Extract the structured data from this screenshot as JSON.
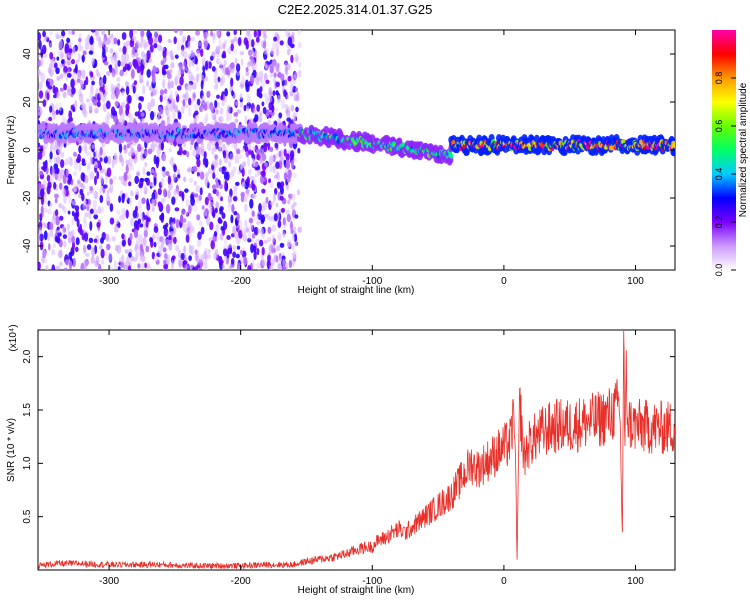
{
  "title": "C2E2.2025.314.01.37.G25",
  "chart_data": [
    {
      "type": "heatmap",
      "xlabel": "Height of straight line (km)",
      "ylabel": "Frequency (Hz)",
      "xlim": [
        -354,
        130
      ],
      "ylim": [
        -50,
        50
      ],
      "xticks": [
        -300,
        -200,
        -100,
        0,
        100
      ],
      "yticks": [
        -40,
        -20,
        0,
        20,
        40
      ],
      "colorbar": {
        "label": "Normalized spectral amplitude",
        "range": [
          0,
          1
        ],
        "ticks": [
          0.0,
          0.2,
          0.4,
          0.6,
          0.8
        ],
        "colors": [
          "#ffffff",
          "#cc99ff",
          "#7a00ff",
          "#0000ff",
          "#00ccff",
          "#00ff66",
          "#66ff00",
          "#ffff00",
          "#ff9900",
          "#ff0000",
          "#ff00aa"
        ]
      },
      "features": [
        {
          "x_range": [
            -354,
            -155
          ],
          "frequency": 7,
          "amplitude": 0.35,
          "noise": "broad scatter across all frequencies"
        },
        {
          "x_range": [
            -155,
            -40
          ],
          "frequency_start": 7,
          "frequency_end": -2,
          "amplitude": 0.5
        },
        {
          "x_range": [
            -40,
            130
          ],
          "frequency": 2,
          "amplitude": 0.9
        }
      ]
    },
    {
      "type": "line",
      "xlabel": "Height of straight line (km)",
      "ylabel": "SNR (10 * v/v)",
      "y_multiplier": "(x10⁴)",
      "xlim": [
        -354,
        130
      ],
      "ylim": [
        0,
        2.25
      ],
      "xticks": [
        -300,
        -200,
        -100,
        0,
        100
      ],
      "yticks": [
        0.5,
        1.0,
        1.5,
        2.0
      ],
      "color": "#e8302a",
      "series": [
        {
          "x": [
            -354,
            -340,
            -320,
            -300,
            -280,
            -260,
            -240,
            -220,
            -200,
            -180,
            -160,
            -150,
            -140,
            -130,
            -120,
            -110,
            -100,
            -95,
            -90,
            -85,
            -80,
            -75,
            -70,
            -65,
            -60,
            -55,
            -50,
            -45,
            -40,
            -35,
            -30,
            -25,
            -20,
            -15,
            -10,
            -5,
            0,
            5,
            8,
            10,
            12,
            15,
            20,
            25,
            30,
            40,
            50,
            60,
            70,
            80,
            85,
            88,
            90,
            91,
            92,
            93,
            94,
            95,
            100,
            110,
            120,
            130
          ],
          "y": [
            0.04,
            0.06,
            0.06,
            0.05,
            0.05,
            0.05,
            0.04,
            0.04,
            0.04,
            0.05,
            0.05,
            0.08,
            0.1,
            0.12,
            0.15,
            0.2,
            0.22,
            0.28,
            0.3,
            0.35,
            0.38,
            0.35,
            0.4,
            0.45,
            0.5,
            0.55,
            0.6,
            0.65,
            0.7,
            0.8,
            0.9,
            1.0,
            0.95,
            1.0,
            1.05,
            1.1,
            1.15,
            1.2,
            1.5,
            0.1,
            1.6,
            1.05,
            1.2,
            1.25,
            1.3,
            1.35,
            1.35,
            1.38,
            1.4,
            1.45,
            1.5,
            1.55,
            0.35,
            2.2,
            1.1,
            1.8,
            1.45,
            1.38,
            1.35,
            1.34,
            1.33,
            1.34
          ]
        }
      ]
    }
  ]
}
